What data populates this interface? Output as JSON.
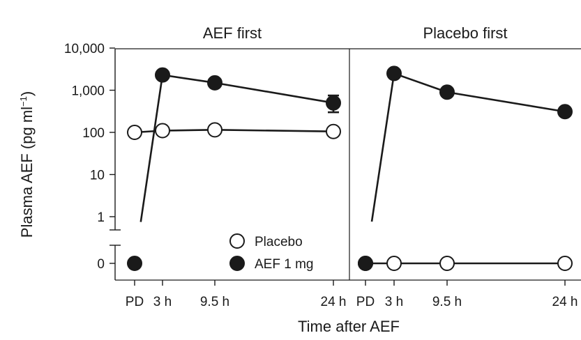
{
  "chart_data": {
    "type": "line",
    "ylabel": "Plasma AEF (pg ml",
    "ylabel_sup": "−1",
    "ylabel_end": ")",
    "xlabel": "Time after AEF",
    "yscale": "log (broken axis with 0)",
    "y_tick_labels": [
      "10,000",
      "1,000",
      "100",
      "10",
      "1",
      "0"
    ],
    "y_tick_values": [
      10000,
      1000,
      100,
      10,
      1,
      0
    ],
    "x_categories": [
      "PD",
      "3 h",
      "9.5 h",
      "24 h"
    ],
    "legend": {
      "placement": "inside-bottom-right of first panel",
      "items": [
        {
          "label": "Placebo",
          "marker": "open-circle"
        },
        {
          "label": "AEF 1 mg",
          "marker": "filled-circle"
        }
      ]
    },
    "panels": [
      {
        "title": "AEF first",
        "series": [
          {
            "name": "AEF 1 mg",
            "marker": "filled",
            "points": [
              {
                "x": "PD",
                "y": 0
              },
              {
                "x": "3 h",
                "y": 2300
              },
              {
                "x": "9.5 h",
                "y": 1500
              },
              {
                "x": "24 h",
                "y": 500,
                "err_low": 300,
                "err_high": 750
              }
            ]
          },
          {
            "name": "Placebo",
            "marker": "open",
            "points": [
              {
                "x": "PD",
                "y": 100
              },
              {
                "x": "3 h",
                "y": 110
              },
              {
                "x": "9.5 h",
                "y": 115
              },
              {
                "x": "24 h",
                "y": 105
              }
            ]
          }
        ]
      },
      {
        "title": "Placebo first",
        "series": [
          {
            "name": "AEF 1 mg",
            "marker": "filled",
            "points": [
              {
                "x": "PD",
                "y": 0
              },
              {
                "x": "3 h",
                "y": 2500
              },
              {
                "x": "9.5 h",
                "y": 900
              },
              {
                "x": "24 h",
                "y": 310
              }
            ]
          },
          {
            "name": "Placebo",
            "marker": "open",
            "points": [
              {
                "x": "PD",
                "y": 0
              },
              {
                "x": "3 h",
                "y": 0
              },
              {
                "x": "9.5 h",
                "y": 0
              },
              {
                "x": "24 h",
                "y": 0
              }
            ]
          }
        ]
      }
    ]
  }
}
